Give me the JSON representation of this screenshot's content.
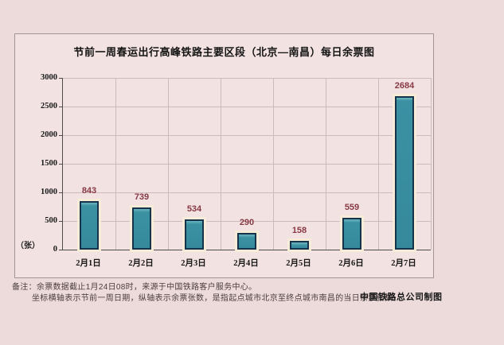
{
  "title": "节前一周春运出行高峰铁路主要区段（北京—南昌）每日余票图",
  "chart_data": {
    "type": "bar",
    "title": "节前一周春运出行高峰铁路主要区段（北京—南昌）每日余票图",
    "categories": [
      "2月1日",
      "2月2日",
      "2月3日",
      "2月4日",
      "2月5日",
      "2月6日",
      "2月7日"
    ],
    "values": [
      843,
      739,
      534,
      290,
      158,
      559,
      2684
    ],
    "xlabel": "",
    "ylabel": "（张）",
    "ylim": [
      0,
      3000
    ],
    "ytick_step": 500,
    "grid": true,
    "legend": "none",
    "bar_color": "#3b91a2",
    "bar_border_color": "#16334c",
    "bar_halo_color": "#f6ecd8",
    "value_label_color": "#873a44",
    "background_color": "#f3e2e2"
  },
  "y_unit_label": "（张）",
  "footer": {
    "note_line1": "备注：余票数据截止1月24日08时，来源于中国铁路客户服务中心。",
    "note_line2": "坐标横轴表示节前一周日期，纵轴表示余票张数，是指起点城市北京至终点城市南昌的当日余票张数。",
    "credit": "中国铁路总公司制图"
  },
  "colors": {
    "page_background": "#eddbdb",
    "panel_background": "#f3e2e2",
    "panel_border": "#a59494",
    "gridline": "#cdbaba",
    "axis": "#4c4c4c"
  }
}
